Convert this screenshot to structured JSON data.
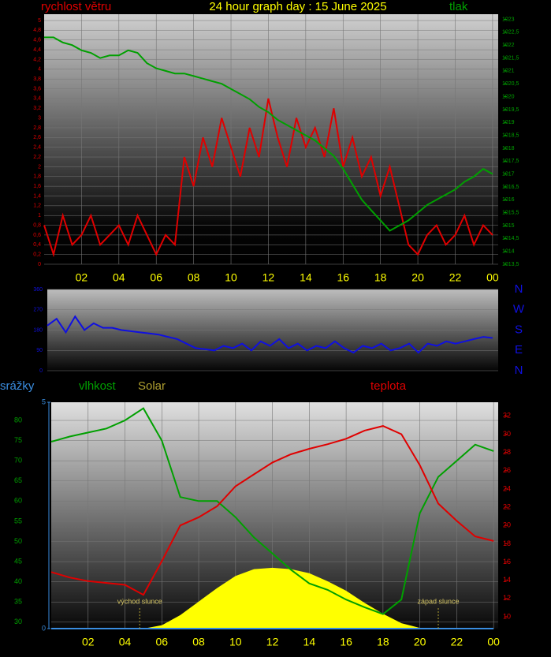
{
  "chart_data": [
    {
      "type": "line",
      "title": "24 hour graph day : 15 June 2025",
      "x": [
        0,
        0.5,
        1,
        1.5,
        2,
        2.5,
        3,
        3.5,
        4,
        4.5,
        5,
        5.5,
        6,
        6.5,
        7,
        7.5,
        8,
        8.5,
        9,
        9.5,
        10,
        10.5,
        11,
        11.5,
        12,
        12.5,
        13,
        13.5,
        14,
        14.5,
        15,
        15.5,
        16,
        16.5,
        17,
        17.5,
        18,
        18.5,
        19,
        19.5,
        20,
        20.5,
        21,
        21.5,
        22,
        22.5,
        23,
        23.5,
        24
      ],
      "series": [
        {
          "name": "rychlost větru",
          "color": "#e00000",
          "axis": "y",
          "values": [
            0.8,
            0.2,
            1.0,
            0.4,
            0.6,
            1.0,
            0.4,
            0.6,
            0.8,
            0.4,
            1.0,
            0.6,
            0.2,
            0.6,
            0.4,
            2.2,
            1.6,
            2.6,
            2.0,
            3.0,
            2.4,
            1.8,
            2.8,
            2.2,
            3.4,
            2.6,
            2.0,
            3.0,
            2.4,
            2.8,
            2.2,
            3.2,
            2.0,
            2.6,
            1.8,
            2.2,
            1.4,
            2.0,
            1.2,
            0.4,
            0.2,
            0.6,
            0.8,
            0.4,
            0.6,
            1.0,
            0.4,
            0.8,
            0.6
          ]
        },
        {
          "name": "tlak",
          "color": "#00a000",
          "axis": "y2",
          "values": [
            1022.3,
            1022.3,
            1022.1,
            1022.0,
            1021.8,
            1021.7,
            1021.5,
            1021.6,
            1021.6,
            1021.8,
            1021.7,
            1021.3,
            1021.1,
            1021.0,
            1020.9,
            1020.9,
            1020.8,
            1020.7,
            1020.6,
            1020.5,
            1020.3,
            1020.1,
            1019.9,
            1019.6,
            1019.4,
            1019.1,
            1018.9,
            1018.7,
            1018.5,
            1018.3,
            1018.0,
            1017.7,
            1017.2,
            1016.6,
            1016.0,
            1015.6,
            1015.2,
            1014.8,
            1015.0,
            1015.2,
            1015.5,
            1015.8,
            1016.0,
            1016.2,
            1016.4,
            1016.7,
            1016.9,
            1017.2,
            1017.0
          ]
        }
      ],
      "xlim": [
        0,
        24.3
      ],
      "xticks": [
        {
          "value": 2,
          "label": "02"
        },
        {
          "value": 4,
          "label": "04"
        },
        {
          "value": 6,
          "label": "06"
        },
        {
          "value": 8,
          "label": "08"
        },
        10,
        12,
        14,
        16,
        18,
        20,
        22,
        {
          "value": 24,
          "label": "00"
        }
      ],
      "ylim": [
        0,
        5.13
      ],
      "yticks": [
        0,
        {
          "value": 0.2,
          "label": "0,2"
        },
        {
          "value": 0.4,
          "label": "0,4"
        },
        {
          "value": 0.6,
          "label": "0,6"
        },
        {
          "value": 0.8,
          "label": "0,8"
        },
        1,
        {
          "value": 1.2,
          "label": "1,2"
        },
        {
          "value": 1.4,
          "label": "1,4"
        },
        {
          "value": 1.6,
          "label": "1,6"
        },
        {
          "value": 1.8,
          "label": "1,8"
        },
        2,
        {
          "value": 2.2,
          "label": "2,2"
        },
        {
          "value": 2.4,
          "label": "2,4"
        },
        {
          "value": 2.6,
          "label": "2,6"
        },
        {
          "value": 2.8,
          "label": "2,8"
        },
        3,
        {
          "value": 3.2,
          "label": "3,2"
        },
        {
          "value": 3.4,
          "label": "3,4"
        },
        {
          "value": 3.6,
          "label": "3,6"
        },
        {
          "value": 3.8,
          "label": "3,8"
        },
        4,
        {
          "value": 4.2,
          "label": "4,2"
        },
        {
          "value": 4.4,
          "label": "4,4"
        },
        {
          "value": 4.6,
          "label": "4,6"
        },
        {
          "value": 4.8,
          "label": "4,8"
        },
        5
      ],
      "y2lim": [
        1013.5,
        1023.2
      ],
      "y2ticks": [
        {
          "value": 1013.5,
          "label": "1013,5"
        },
        1014,
        {
          "value": 1014.5,
          "label": "1014,5"
        },
        1015,
        {
          "value": 1015.5,
          "label": "1015,5"
        },
        1016,
        {
          "value": 1016.5,
          "label": "1016,5"
        },
        1017,
        {
          "value": 1017.5,
          "label": "1017,5"
        },
        1018,
        {
          "value": 1018.5,
          "label": "1018,5"
        },
        1019,
        {
          "value": 1019.5,
          "label": "1019,5"
        },
        1020,
        {
          "value": 1020.5,
          "label": "1020,5"
        },
        1021,
        {
          "value": 1021.5,
          "label": "1021,5"
        },
        1022,
        {
          "value": 1022.5,
          "label": "1022,5"
        },
        1023
      ],
      "grid": true
    },
    {
      "type": "line",
      "x": [
        0,
        0.5,
        1,
        1.5,
        2,
        2.5,
        3,
        3.5,
        4,
        4.5,
        5,
        5.5,
        6,
        6.5,
        7,
        7.5,
        8,
        8.5,
        9,
        9.5,
        10,
        10.5,
        11,
        11.5,
        12,
        12.5,
        13,
        13.5,
        14,
        14.5,
        15,
        15.5,
        16,
        16.5,
        17,
        17.5,
        18,
        18.5,
        19,
        19.5,
        20,
        20.5,
        21,
        21.5,
        22,
        22.5,
        23,
        23.5,
        24
      ],
      "series": [
        {
          "color": "#1010e0",
          "axis": "y",
          "values": [
            200,
            230,
            170,
            240,
            180,
            210,
            190,
            190,
            180,
            175,
            170,
            165,
            160,
            150,
            140,
            120,
            100,
            95,
            90,
            110,
            100,
            120,
            90,
            130,
            110,
            140,
            100,
            120,
            90,
            110,
            100,
            130,
            100,
            80,
            110,
            100,
            120,
            90,
            100,
            120,
            80,
            120,
            110,
            130,
            120,
            130,
            140,
            150,
            145
          ]
        }
      ],
      "xlim": [
        0,
        24.3
      ],
      "ylim": [
        0,
        360
      ],
      "yticks": [
        0,
        90,
        180,
        270,
        360
      ],
      "compass": [
        "N",
        "E",
        "S",
        "W",
        "N"
      ],
      "grid": true
    },
    {
      "type": "line",
      "x": [
        0,
        1,
        2,
        3,
        4,
        5,
        6,
        7,
        8,
        9,
        10,
        11,
        12,
        13,
        14,
        15,
        16,
        17,
        18,
        19,
        20,
        21,
        22,
        23,
        24
      ],
      "series": [
        {
          "name": "srážky",
          "color": "#3a8de0",
          "axis": "y3",
          "values": [
            0,
            0,
            0,
            0,
            0,
            0,
            0,
            0,
            0,
            0,
            0,
            0,
            0,
            0,
            0,
            0,
            0,
            0,
            0,
            0,
            0,
            0,
            0,
            0,
            0
          ]
        },
        {
          "name": "vlhkost",
          "color": "#00a000",
          "axis": "y",
          "values": [
            74.7,
            76,
            77,
            78,
            80,
            83,
            75,
            61,
            60,
            60,
            56,
            51,
            47,
            43,
            39.6,
            38,
            35.6,
            33.7,
            32,
            35.6,
            57,
            66,
            70,
            74,
            72.4
          ]
        },
        {
          "name": "Solar",
          "color": "#ffff00",
          "axis": "y4",
          "kind": "area",
          "values": [
            0,
            0,
            0,
            0,
            0,
            0,
            50,
            200,
            400,
            600,
            780,
            880,
            900,
            880,
            820,
            700,
            560,
            380,
            220,
            80,
            10,
            0,
            0,
            0,
            0
          ]
        },
        {
          "name": "teplota",
          "color": "#e00000",
          "axis": "y2",
          "values": [
            14.9,
            14.3,
            13.9,
            13.7,
            13.5,
            12.4,
            16.1,
            20,
            20.9,
            22.1,
            24.3,
            25.6,
            26.9,
            27.8,
            28.4,
            28.9,
            29.5,
            30.4,
            30.9,
            30,
            26.6,
            22.4,
            20.5,
            18.8,
            18.3
          ]
        }
      ],
      "xlim": [
        0,
        24.25
      ],
      "xticks": [
        {
          "value": 2,
          "label": "02"
        },
        {
          "value": 4,
          "label": "04"
        },
        {
          "value": 6,
          "label": "06"
        },
        {
          "value": 8,
          "label": "08"
        },
        10,
        12,
        14,
        16,
        18,
        20,
        22,
        {
          "value": 24,
          "label": "00"
        }
      ],
      "ylim": [
        28.4,
        84.5
      ],
      "yticks": [
        30,
        35,
        40,
        45,
        50,
        55,
        60,
        65,
        70,
        75,
        80
      ],
      "y2lim": [
        8.7,
        33.5
      ],
      "y2ticks": [
        10,
        12,
        14,
        16,
        18,
        20,
        22,
        24,
        26,
        28,
        30,
        32
      ],
      "y3lim": [
        0,
        5
      ],
      "y3ticks": [
        0,
        5
      ],
      "y4lim": [
        0,
        3350
      ],
      "annotations": [
        {
          "x": 4.8,
          "text": "východ slunce"
        },
        {
          "x": 21.0,
          "text": "západ slunce"
        }
      ],
      "grid": true
    }
  ]
}
